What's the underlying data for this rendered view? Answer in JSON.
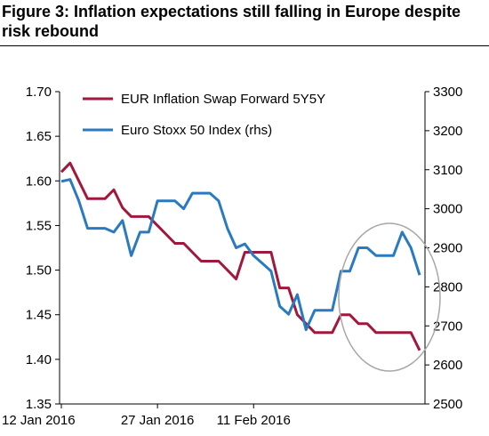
{
  "title": "Figure 3: Inflation expectations still falling in Europe despite risk rebound",
  "chart_data": {
    "type": "line",
    "x_tick_labels": [
      "12 Jan 2016",
      "27 Jan 2016",
      "11 Feb 2016"
    ],
    "x_tick_index": [
      0,
      11,
      22
    ],
    "y_left": {
      "ticks": [
        "1.70",
        "1.65",
        "1.60",
        "1.55",
        "1.50",
        "1.45",
        "1.40",
        "1.35"
      ],
      "min": 1.35,
      "max": 1.7
    },
    "y_right": {
      "ticks": [
        "3300",
        "3200",
        "3100",
        "3000",
        "2900",
        "2800",
        "2700",
        "2600",
        "2500"
      ],
      "min": 2500,
      "max": 3300
    },
    "series": [
      {
        "name": "EUR Inflation Swap Forward 5Y5Y",
        "axis": "left",
        "color": "#a0193c",
        "values": [
          1.61,
          1.62,
          1.6,
          1.58,
          1.58,
          1.58,
          1.59,
          1.57,
          1.56,
          1.56,
          1.56,
          1.55,
          1.54,
          1.53,
          1.53,
          1.52,
          1.51,
          1.51,
          1.51,
          1.5,
          1.49,
          1.52,
          1.52,
          1.52,
          1.52,
          1.48,
          1.48,
          1.45,
          1.44,
          1.43,
          1.43,
          1.43,
          1.45,
          1.45,
          1.44,
          1.44,
          1.43,
          1.43,
          1.43,
          1.43,
          1.43,
          1.41
        ]
      },
      {
        "name": "Euro Stoxx 50 Index (rhs)",
        "axis": "right",
        "color": "#2a7ac1",
        "values": [
          3070,
          3075,
          3020,
          2950,
          2950,
          2950,
          2940,
          2970,
          2880,
          2940,
          2940,
          3020,
          3020,
          3020,
          3000,
          3040,
          3040,
          3040,
          3020,
          2950,
          2900,
          2910,
          2880,
          2860,
          2840,
          2750,
          2730,
          2780,
          2690,
          2740,
          2740,
          2740,
          2840,
          2840,
          2900,
          2900,
          2880,
          2880,
          2880,
          2940,
          2900,
          2830
        ]
      }
    ],
    "annotation": "ellipse around recent period"
  }
}
